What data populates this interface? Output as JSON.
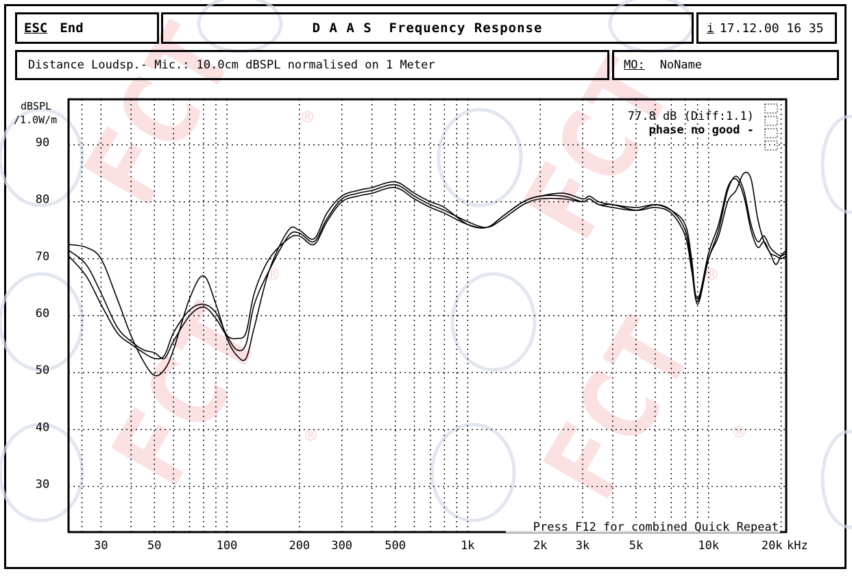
{
  "header": {
    "esc_key": "ESC",
    "esc_label": "End",
    "title": "D A A S  Frequency Response",
    "info_key": "i",
    "datetime": "17.12.00 16 35"
  },
  "subheader": {
    "distance_text": "Distance Loudsp.- Mic.: 10.0cm dBSPL normalised on 1 Meter",
    "mo_key": "MO:",
    "mo_value": "NoName"
  },
  "watermark": {
    "text": "FCT",
    "mark": "®"
  },
  "chart_data": {
    "type": "line",
    "ylabel": "dBSPL",
    "ylabel_unit": "/1.0W/m",
    "x_unit": "kHz",
    "x_scale": "log",
    "xlim": [
      22,
      21000
    ],
    "ylim": [
      22,
      98
    ],
    "grid": true,
    "y_ticks": [
      90,
      80,
      70,
      60,
      50,
      40,
      30
    ],
    "x_ticks": [
      {
        "value": 30,
        "label": "30"
      },
      {
        "value": 50,
        "label": "50"
      },
      {
        "value": 100,
        "label": "100"
      },
      {
        "value": 200,
        "label": "200"
      },
      {
        "value": 300,
        "label": "300"
      },
      {
        "value": 500,
        "label": "500"
      },
      {
        "value": 1000,
        "label": "1k"
      },
      {
        "value": 2000,
        "label": "2k"
      },
      {
        "value": 3000,
        "label": "3k"
      },
      {
        "value": 5000,
        "label": "5k"
      },
      {
        "value": 10000,
        "label": "10k"
      },
      {
        "value": 20000,
        "label": "20k"
      }
    ],
    "annotation_level": "77.8 dB (Diff:1.1)",
    "annotation_phase": "phase no good -",
    "footer_hint": "Press F12 for combined Quick Repeat",
    "series": [
      {
        "x": [
          22,
          26,
          30,
          35,
          40,
          45,
          50,
          55,
          60,
          70,
          80,
          90,
          100,
          110,
          120,
          130,
          150,
          180,
          200,
          230,
          260,
          300,
          350,
          400,
          500,
          600,
          700,
          800,
          1000,
          1200,
          1400,
          1700,
          2000,
          2500,
          3000,
          3200,
          3500,
          4000,
          5000,
          6000,
          7000,
          8000,
          8500,
          9000,
          10000,
          11000,
          12000,
          13000,
          14000,
          15000,
          16000,
          17000,
          18000,
          19000,
          20000,
          21000
        ],
        "y": [
          70.5,
          67,
          62,
          57,
          55,
          53.5,
          52.5,
          53,
          57,
          61,
          62,
          60.5,
          56.5,
          54,
          55,
          62,
          68,
          74,
          74.5,
          73,
          77,
          80.5,
          81.5,
          82,
          83,
          81,
          79.5,
          78.5,
          76.5,
          75.5,
          77,
          79.5,
          80.5,
          80.5,
          80,
          80.5,
          79.5,
          79.5,
          78.5,
          79,
          78,
          74,
          68,
          62.5,
          71,
          76,
          82.5,
          84,
          81,
          75,
          72,
          73,
          71,
          70.5,
          70,
          70.5
        ]
      },
      {
        "x": [
          22,
          26,
          30,
          35,
          40,
          45,
          50,
          55,
          60,
          70,
          80,
          90,
          100,
          110,
          120,
          130,
          150,
          180,
          200,
          230,
          260,
          300,
          350,
          400,
          500,
          600,
          700,
          800,
          1000,
          1200,
          1400,
          1700,
          2000,
          2500,
          3000,
          3200,
          3500,
          4000,
          5000,
          6000,
          7000,
          8000,
          8500,
          9000,
          10000,
          11000,
          12000,
          13000,
          14000,
          15000,
          16000,
          17000,
          18000,
          19000,
          20000,
          21000
        ],
        "y": [
          71.5,
          69,
          64,
          58,
          55.5,
          54,
          53.5,
          52.5,
          55.5,
          60,
          61.5,
          59.5,
          56.5,
          56,
          57,
          64,
          70,
          73.5,
          74,
          72.5,
          76.5,
          80,
          81,
          81.5,
          82.5,
          80.5,
          79,
          78,
          76,
          75.5,
          77.5,
          80,
          81,
          81,
          80,
          80.5,
          79.5,
          79,
          78.5,
          79.5,
          78.5,
          75,
          69,
          63,
          70,
          75,
          82,
          84.5,
          82,
          76,
          73,
          74,
          72,
          71,
          70.5,
          71
        ]
      },
      {
        "x": [
          22,
          26,
          30,
          35,
          40,
          45,
          50,
          55,
          60,
          70,
          80,
          90,
          100,
          110,
          120,
          130,
          150,
          180,
          200,
          230,
          260,
          300,
          350,
          400,
          500,
          600,
          700,
          800,
          1000,
          1200,
          1400,
          1700,
          2000,
          2500,
          3000,
          3200,
          3500,
          4000,
          5000,
          6000,
          7000,
          8000,
          8500,
          9000,
          10000,
          11000,
          12000,
          13000,
          14000,
          15000,
          16000,
          17000,
          18000,
          19000,
          20000,
          21000
        ],
        "y": [
          72.5,
          72,
          70,
          63,
          56.5,
          52,
          49.5,
          50.5,
          54,
          63,
          67,
          62,
          56,
          53,
          52.5,
          58,
          68,
          75,
          75,
          73.5,
          78,
          81,
          82,
          82.5,
          83.5,
          81.5,
          80,
          79,
          76,
          75.5,
          77.5,
          80,
          81,
          81.5,
          80.5,
          81,
          80,
          79.5,
          79,
          79.5,
          78.5,
          76,
          70,
          62,
          70,
          74,
          80,
          82,
          85,
          84,
          77,
          73,
          71,
          69,
          70.5,
          71.5
        ]
      }
    ]
  }
}
